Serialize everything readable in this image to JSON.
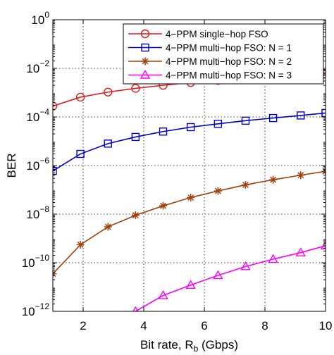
{
  "chart_data": {
    "type": "line",
    "title": "",
    "xlabel": {
      "main": "Bit rate, R",
      "sub": "b",
      "unit": " (Gbps)"
    },
    "ylabel": "BER",
    "xlim": [
      1,
      10
    ],
    "ylim": [
      1e-12,
      1
    ],
    "yscale": "log",
    "grid": true,
    "legend_position": "top-right",
    "x_ticks": [
      {
        "value": 2,
        "label": "2"
      },
      {
        "value": 4,
        "label": "4"
      },
      {
        "value": 6,
        "label": "6"
      },
      {
        "value": 8,
        "label": "8"
      },
      {
        "value": 10,
        "label": "10"
      }
    ],
    "y_ticks": [
      {
        "value": 1,
        "base": "10",
        "exp": "0"
      },
      {
        "value": 0.01,
        "base": "10",
        "exp": "−2"
      },
      {
        "value": 0.0001,
        "base": "10",
        "exp": "−4"
      },
      {
        "value": 1e-06,
        "base": "10",
        "exp": "−6"
      },
      {
        "value": 1e-08,
        "base": "10",
        "exp": "−8"
      },
      {
        "value": 1e-10,
        "base": "10",
        "exp": "−10"
      },
      {
        "value": 1e-12,
        "base": "10",
        "exp": "−12"
      }
    ],
    "series": [
      {
        "name": "4−PPM single−hop FSO",
        "color": "#e41a1c",
        "marker": "circle",
        "x": [
          1,
          1.91,
          2.82,
          3.73,
          4.64,
          5.55,
          6.45,
          7.36,
          8.27,
          9.18,
          10
        ],
        "y": [
          0.00028,
          0.00065,
          0.00105,
          0.0015,
          0.002,
          0.0026,
          0.0032,
          0.0038,
          0.0045,
          0.0052,
          0.0058
        ]
      },
      {
        "name": "4−PPM multi−hop FSO: N = 1",
        "color": "#0000cc",
        "marker": "square",
        "x": [
          1,
          1.91,
          2.82,
          3.73,
          4.64,
          5.55,
          6.45,
          7.36,
          8.27,
          9.18,
          10
        ],
        "y": [
          6e-07,
          3e-06,
          8e-06,
          1.5e-05,
          2.5e-05,
          3.8e-05,
          5.2e-05,
          7e-05,
          9e-05,
          0.000115,
          0.000145
        ]
      },
      {
        "name": "4−PPM multi−hop FSO: N = 2",
        "color": "#a0400a",
        "marker": "star",
        "x": [
          1,
          1.91,
          2.82,
          3.73,
          4.64,
          5.55,
          6.45,
          7.36,
          8.27,
          9.18,
          10
        ],
        "y": [
          3.5e-11,
          5.5e-10,
          3e-09,
          9e-09,
          2.2e-08,
          4.8e-08,
          9e-08,
          1.6e-07,
          2.6e-07,
          4e-07,
          5.8e-07
        ]
      },
      {
        "name": "4−PPM multi−hop FSO: N = 3",
        "color": "#ff00ff",
        "marker": "triangle",
        "x": [
          3.73,
          4.64,
          5.55,
          6.45,
          7.36,
          8.27,
          9.18,
          10
        ],
        "y": [
          1e-12,
          4.5e-12,
          1.2e-11,
          3e-11,
          7e-11,
          1.4e-10,
          2.6e-10,
          5e-10
        ]
      }
    ]
  }
}
